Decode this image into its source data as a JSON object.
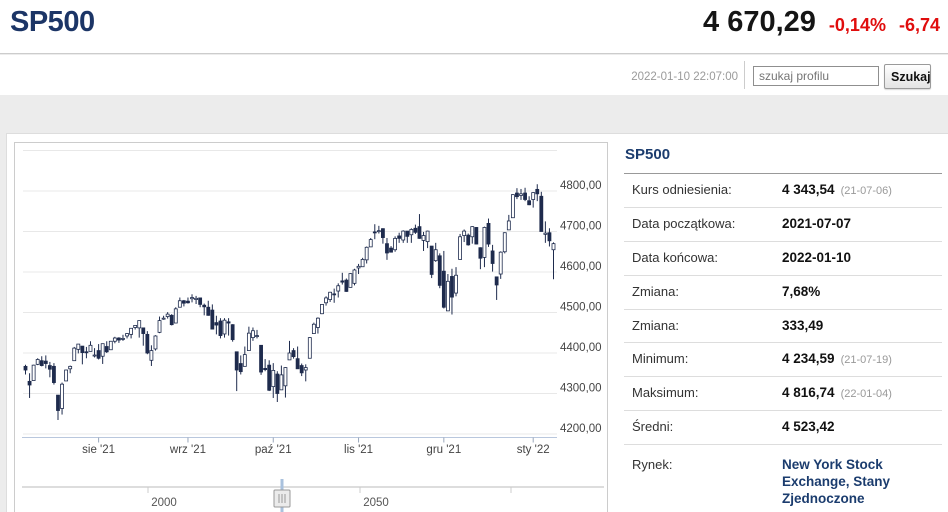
{
  "header": {
    "symbol": "SP500",
    "price": "4 670,29",
    "change_percent": "-0,14%",
    "change_absolute": "-6,74"
  },
  "toolbar": {
    "timestamp": "2022-01-10 22:07:00",
    "search_placeholder": "szukaj profilu",
    "search_button": "Szukaj"
  },
  "panel": {
    "title": "SP500",
    "rows": [
      {
        "label": "Kurs odniesienia:",
        "value": "4 343,54",
        "note": "(21-07-06)"
      },
      {
        "label": "Data początkowa:",
        "value": "2021-07-07",
        "note": ""
      },
      {
        "label": "Data końcowa:",
        "value": "2022-01-10",
        "note": ""
      },
      {
        "label": "Zmiana:",
        "value": "7,68%",
        "note": ""
      },
      {
        "label": "Zmiana:",
        "value": "333,49",
        "note": ""
      },
      {
        "label": "Minimum:",
        "value": "4 234,59",
        "note": "(21-07-19)"
      },
      {
        "label": "Maksimum:",
        "value": "4 816,74",
        "note": "(22-01-04)"
      },
      {
        "label": "Średni:",
        "value": "4 523,42",
        "note": ""
      },
      {
        "label": "Rynek:",
        "value": "New York Stock Exchange, Stany Zjednoczone",
        "note": ""
      }
    ]
  },
  "colors": {
    "navy": "#1b3c6e",
    "red": "#e00d0d",
    "candle": "#1e2b4d",
    "grid": "#e8e8e8",
    "axis_line": "#b9c7dd"
  },
  "chart_data": {
    "type": "candlestick",
    "title": "SP500",
    "y_axis": {
      "grid_min": 4200,
      "grid_max": 4900,
      "step": 100,
      "label_min": 4200,
      "label_max": 4800,
      "label_suffix": ",00"
    },
    "x_ticks": [
      {
        "label": "sie '21",
        "index": 18
      },
      {
        "label": "wrz '21",
        "index": 40
      },
      {
        "label": "paź '21",
        "index": 61
      },
      {
        "label": "lis '21",
        "index": 82
      },
      {
        "label": "gru '21",
        "index": 103
      },
      {
        "label": "sty '22",
        "index": 125
      }
    ],
    "navigator": {
      "ticks": [
        {
          "x": 148,
          "label": "2000"
        },
        {
          "x": 360,
          "label": "2050"
        },
        {
          "x": 511,
          "label": ""
        }
      ],
      "grip_x": 282
    },
    "colors": {
      "candle": "#1e2b4d",
      "up_fill": "#ffffff"
    },
    "ohlc": [
      [
        "2021-07-07",
        4367,
        4371,
        4347,
        4358
      ],
      [
        "2021-07-08",
        4330,
        4350,
        4289,
        4321
      ],
      [
        "2021-07-09",
        4332,
        4371,
        4332,
        4370
      ],
      [
        "2021-07-12",
        4372,
        4387,
        4370,
        4384
      ],
      [
        "2021-07-13",
        4381,
        4392,
        4367,
        4369
      ],
      [
        "2021-07-14",
        4380,
        4394,
        4362,
        4374
      ],
      [
        "2021-07-15",
        4369,
        4378,
        4340,
        4360
      ],
      [
        "2021-07-16",
        4367,
        4375,
        4322,
        4327
      ],
      [
        "2021-07-19",
        4296,
        4296,
        4234.6,
        4258
      ],
      [
        "2021-07-20",
        4263,
        4327,
        4248,
        4323
      ],
      [
        "2021-07-21",
        4331,
        4359,
        4331,
        4358
      ],
      [
        "2021-07-22",
        4361,
        4369,
        4350,
        4367
      ],
      [
        "2021-07-23",
        4381,
        4415,
        4381,
        4412
      ],
      [
        "2021-07-26",
        4409,
        4422,
        4399,
        4422
      ],
      [
        "2021-07-27",
        4417,
        4417,
        4372,
        4401
      ],
      [
        "2021-07-28",
        4403,
        4415,
        4387,
        4401
      ],
      [
        "2021-07-29",
        4404,
        4429,
        4404,
        4419
      ],
      [
        "2021-07-30",
        4395,
        4412,
        4389,
        4395
      ],
      [
        "2021-08-02",
        4406,
        4422,
        4384,
        4387
      ],
      [
        "2021-08-03",
        4392,
        4423,
        4373,
        4423
      ],
      [
        "2021-08-04",
        4416,
        4429,
        4400,
        4403
      ],
      [
        "2021-08-05",
        4408,
        4429,
        4408,
        4429
      ],
      [
        "2021-08-06",
        4429,
        4440,
        4424,
        4437
      ],
      [
        "2021-08-09",
        4437,
        4439,
        4425,
        4432
      ],
      [
        "2021-08-10",
        4436,
        4445,
        4430,
        4436
      ],
      [
        "2021-08-11",
        4442,
        4449,
        4436,
        4448
      ],
      [
        "2021-08-12",
        4446,
        4461,
        4436,
        4461
      ],
      [
        "2021-08-13",
        4463,
        4468,
        4458,
        4468
      ],
      [
        "2021-08-16",
        4462,
        4480,
        4438,
        4480
      ],
      [
        "2021-08-17",
        4462,
        4462,
        4418,
        4448
      ],
      [
        "2021-08-18",
        4446,
        4454,
        4397,
        4400
      ],
      [
        "2021-08-19",
        4382,
        4419,
        4368,
        4406
      ],
      [
        "2021-08-20",
        4410,
        4444,
        4406,
        4442
      ],
      [
        "2021-08-23",
        4451,
        4490,
        4449,
        4480
      ],
      [
        "2021-08-24",
        4484,
        4492,
        4482,
        4486
      ],
      [
        "2021-08-25",
        4490,
        4501,
        4485,
        4496
      ],
      [
        "2021-08-26",
        4493,
        4496,
        4468,
        4470
      ],
      [
        "2021-08-27",
        4474,
        4513,
        4474,
        4509
      ],
      [
        "2021-08-30",
        4513,
        4537,
        4513,
        4529
      ],
      [
        "2021-08-31",
        4529,
        4531,
        4515,
        4523
      ],
      [
        "2021-09-01",
        4528,
        4537,
        4522,
        4524
      ],
      [
        "2021-09-02",
        4534,
        4545,
        4525,
        4537
      ],
      [
        "2021-09-03",
        4532,
        4541,
        4521,
        4535
      ],
      [
        "2021-09-07",
        4536,
        4536,
        4513,
        4520
      ],
      [
        "2021-09-08",
        4518,
        4522,
        4493,
        4514
      ],
      [
        "2021-09-09",
        4513,
        4529,
        4492,
        4493
      ],
      [
        "2021-09-10",
        4506,
        4520,
        4458,
        4459
      ],
      [
        "2021-09-13",
        4475,
        4492,
        4446,
        4469
      ],
      [
        "2021-09-14",
        4479,
        4486,
        4436,
        4443
      ],
      [
        "2021-09-15",
        4447,
        4486,
        4438,
        4481
      ],
      [
        "2021-09-16",
        4477,
        4486,
        4443,
        4474
      ],
      [
        "2021-09-17",
        4470,
        4471,
        4428,
        4433
      ],
      [
        "2021-09-20",
        4403,
        4403,
        4306,
        4358
      ],
      [
        "2021-09-21",
        4374,
        4394,
        4347,
        4354
      ],
      [
        "2021-09-22",
        4367,
        4416,
        4367,
        4396
      ],
      [
        "2021-09-23",
        4406,
        4465,
        4406,
        4449
      ],
      [
        "2021-09-24",
        4438,
        4463,
        4430,
        4455
      ],
      [
        "2021-09-27",
        4442,
        4457,
        4436,
        4443
      ],
      [
        "2021-09-28",
        4419,
        4419,
        4346,
        4353
      ],
      [
        "2021-09-29",
        4362,
        4385,
        4355,
        4359
      ],
      [
        "2021-09-30",
        4370,
        4382,
        4306,
        4308
      ],
      [
        "2021-10-01",
        4317,
        4375,
        4289,
        4357
      ],
      [
        "2021-10-04",
        4348,
        4355,
        4279,
        4300
      ],
      [
        "2021-10-05",
        4309,
        4369,
        4309,
        4346
      ],
      [
        "2021-10-06",
        4319,
        4365,
        4290,
        4364
      ],
      [
        "2021-10-07",
        4383,
        4430,
        4383,
        4400
      ],
      [
        "2021-10-08",
        4406,
        4412,
        4386,
        4391
      ],
      [
        "2021-10-11",
        4386,
        4416,
        4361,
        4361
      ],
      [
        "2021-10-12",
        4369,
        4374,
        4343,
        4351
      ],
      [
        "2021-10-13",
        4358,
        4372,
        4330,
        4364
      ],
      [
        "2021-10-14",
        4387,
        4439,
        4387,
        4438
      ],
      [
        "2021-10-15",
        4448,
        4475,
        4448,
        4471
      ],
      [
        "2021-10-18",
        4463,
        4488,
        4448,
        4486
      ],
      [
        "2021-10-19",
        4497,
        4521,
        4496,
        4520
      ],
      [
        "2021-10-20",
        4524,
        4540,
        4517,
        4536
      ],
      [
        "2021-10-21",
        4532,
        4551,
        4526,
        4550
      ],
      [
        "2021-10-22",
        4546,
        4559,
        4524,
        4545
      ],
      [
        "2021-10-25",
        4553,
        4572,
        4537,
        4566
      ],
      [
        "2021-10-26",
        4578,
        4598,
        4569,
        4575
      ],
      [
        "2021-10-27",
        4580,
        4584,
        4551,
        4552
      ],
      [
        "2021-10-28",
        4562,
        4597,
        4562,
        4596
      ],
      [
        "2021-10-29",
        4572,
        4608,
        4567,
        4605
      ],
      [
        "2021-11-01",
        4610,
        4620,
        4595,
        4614
      ],
      [
        "2021-11-02",
        4613,
        4635,
        4613,
        4631
      ],
      [
        "2021-11-03",
        4630,
        4663,
        4621,
        4661
      ],
      [
        "2021-11-04",
        4662,
        4684,
        4662,
        4680
      ],
      [
        "2021-11-05",
        4699,
        4718,
        4681,
        4698
      ],
      [
        "2021-11-08",
        4701,
        4714,
        4695,
        4702
      ],
      [
        "2021-11-09",
        4707,
        4708,
        4670,
        4685
      ],
      [
        "2021-11-10",
        4670,
        4684,
        4630,
        4647
      ],
      [
        "2021-11-11",
        4659,
        4664,
        4648,
        4649
      ],
      [
        "2021-11-12",
        4655,
        4688,
        4650,
        4683
      ],
      [
        "2021-11-15",
        4689,
        4697,
        4672,
        4683
      ],
      [
        "2021-11-16",
        4679,
        4703,
        4672,
        4701
      ],
      [
        "2021-11-17",
        4701,
        4701,
        4672,
        4688
      ],
      [
        "2021-11-18",
        4692,
        4708,
        4672,
        4705
      ],
      [
        "2021-11-19",
        4708,
        4717,
        4694,
        4698
      ],
      [
        "2021-11-22",
        4712,
        4743,
        4682,
        4683
      ],
      [
        "2021-11-23",
        4678,
        4699,
        4652,
        4690
      ],
      [
        "2021-11-24",
        4675,
        4702,
        4659,
        4701
      ],
      [
        "2021-11-26",
        4664,
        4664,
        4585,
        4594
      ],
      [
        "2021-11-29",
        4628,
        4672,
        4625,
        4655
      ],
      [
        "2021-11-30",
        4640,
        4646,
        4560,
        4567
      ],
      [
        "2021-12-01",
        4602,
        4652,
        4510,
        4513
      ],
      [
        "2021-12-02",
        4504,
        4595,
        4504,
        4577
      ],
      [
        "2021-12-03",
        4589,
        4608,
        4495,
        4538
      ],
      [
        "2021-12-06",
        4548,
        4612,
        4540,
        4592
      ],
      [
        "2021-12-07",
        4631,
        4694,
        4631,
        4687
      ],
      [
        "2021-12-08",
        4690,
        4705,
        4674,
        4701
      ],
      [
        "2021-12-09",
        4691,
        4695,
        4665,
        4667
      ],
      [
        "2021-12-10",
        4687,
        4713,
        4670,
        4712
      ],
      [
        "2021-12-13",
        4710,
        4711,
        4668,
        4669
      ],
      [
        "2021-12-14",
        4660,
        4661,
        4607,
        4634
      ],
      [
        "2021-12-15",
        4636,
        4712,
        4612,
        4710
      ],
      [
        "2021-12-16",
        4720,
        4732,
        4662,
        4669
      ],
      [
        "2021-12-17",
        4652,
        4667,
        4601,
        4621
      ],
      [
        "2021-12-20",
        4588,
        4588,
        4531,
        4568
      ],
      [
        "2021-12-21",
        4595,
        4651,
        4583,
        4649
      ],
      [
        "2021-12-22",
        4650,
        4698,
        4646,
        4697
      ],
      [
        "2021-12-23",
        4704,
        4741,
        4704,
        4726
      ],
      [
        "2021-12-27",
        4734,
        4792,
        4734,
        4791
      ],
      [
        "2021-12-28",
        4795,
        4807,
        4780,
        4786
      ],
      [
        "2021-12-29",
        4789,
        4805,
        4778,
        4793
      ],
      [
        "2021-12-30",
        4795,
        4808,
        4775,
        4779
      ],
      [
        "2021-12-31",
        4776,
        4787,
        4765,
        4766
      ],
      [
        "2022-01-03",
        4779,
        4797,
        4759,
        4796
      ],
      [
        "2022-01-04",
        4804,
        4816.7,
        4775,
        4793
      ],
      [
        "2022-01-05",
        4787,
        4798,
        4700,
        4700
      ],
      [
        "2022-01-06",
        4693,
        4725,
        4672,
        4696
      ],
      [
        "2022-01-07",
        4697,
        4708,
        4663,
        4677
      ],
      [
        "2022-01-10",
        4655,
        4673,
        4582,
        4670
      ]
    ]
  }
}
